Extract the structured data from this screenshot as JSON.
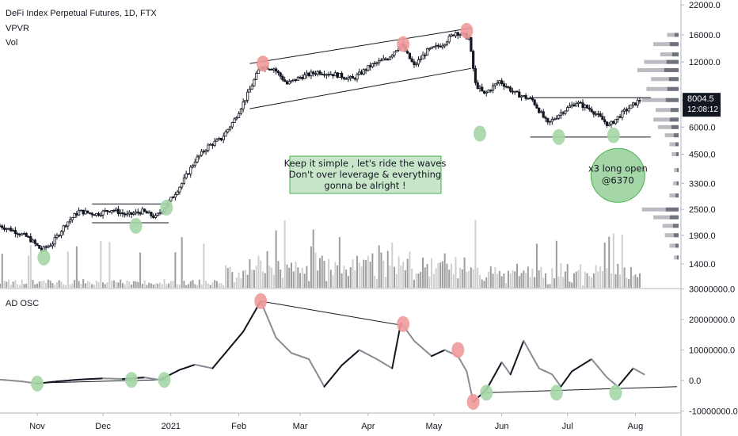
{
  "legend": {
    "title": "DeFi Index Perpetual Futures, 1D, FTX",
    "vpvr": "VPVR",
    "vol": "Vol",
    "osc": "AD OSC"
  },
  "price_badge": {
    "price": "8004.5",
    "countdown": "12:08:12",
    "color": "#131722"
  },
  "annotations": {
    "box_line1": "Keep it simple , let's ride the waves",
    "box_line2": "Don't over leverage & everything",
    "box_line3": "gonna be alright !",
    "circle_line1": "x3 long open",
    "circle_line2": "@6370"
  },
  "colors": {
    "green": "#a5d6a7",
    "red": "#ef9a9a",
    "box_fill": "#c8e6c9",
    "box_border": "#4caf50"
  },
  "chart_data": {
    "type": "candlestick",
    "title": "DeFi Index Perpetual Futures, 1D, FTX",
    "price_axis": {
      "scale": "log",
      "ticks": [
        1400,
        1900,
        2500,
        3300,
        4500,
        6000,
        8000,
        12000,
        16000,
        22000
      ],
      "tick_labels": [
        "1400.0",
        "1900.0",
        "2500.0",
        "3300.0",
        "4500.0",
        "6000.0",
        "8000.0",
        "12000.0",
        "16000.0",
        "22000.0"
      ]
    },
    "osc_axis": {
      "ticks": [
        -10000000,
        0,
        10000000,
        20000000,
        30000000
      ],
      "tick_labels": [
        "-10000000.0",
        "0.0",
        "10000000.0",
        "20000000.0",
        "30000000.0"
      ]
    },
    "x_axis": {
      "start": "2020-10-15",
      "end": "2021-08-20",
      "ticks": [
        "2020-11-01",
        "2020-12-01",
        "2021-01-01",
        "2021-02-01",
        "2021-03-01",
        "2021-04-01",
        "2021-05-01",
        "2021-06-01",
        "2021-07-01",
        "2021-08-01"
      ],
      "tick_labels": [
        "Nov",
        "Dec",
        "2021",
        "Feb",
        "Mar",
        "Apr",
        "May",
        "Jun",
        "Jul",
        "Aug"
      ]
    },
    "price_path": [
      [
        "2020-10-15",
        2100
      ],
      [
        "2020-10-22",
        1980
      ],
      [
        "2020-10-28",
        1850
      ],
      [
        "2020-11-03",
        1620
      ],
      [
        "2020-11-08",
        1750
      ],
      [
        "2020-11-14",
        2150
      ],
      [
        "2020-11-20",
        2450
      ],
      [
        "2020-11-28",
        2380
      ],
      [
        "2020-12-05",
        2500
      ],
      [
        "2020-12-12",
        2350
      ],
      [
        "2020-12-19",
        2450
      ],
      [
        "2020-12-25",
        2300
      ],
      [
        "2020-12-31",
        2700
      ],
      [
        "2021-01-06",
        3300
      ],
      [
        "2021-01-12",
        4200
      ],
      [
        "2021-01-18",
        4900
      ],
      [
        "2021-01-24",
        5300
      ],
      [
        "2021-01-30",
        6500
      ],
      [
        "2021-02-05",
        8500
      ],
      [
        "2021-02-11",
        11500
      ],
      [
        "2021-02-17",
        11200
      ],
      [
        "2021-02-23",
        9500
      ],
      [
        "2021-03-01",
        10200
      ],
      [
        "2021-03-09",
        10800
      ],
      [
        "2021-03-17",
        10500
      ],
      [
        "2021-03-25",
        10000
      ],
      [
        "2021-04-02",
        11500
      ],
      [
        "2021-04-10",
        12500
      ],
      [
        "2021-04-16",
        14500
      ],
      [
        "2021-04-22",
        11500
      ],
      [
        "2021-04-28",
        13500
      ],
      [
        "2021-05-05",
        14500
      ],
      [
        "2021-05-11",
        16500
      ],
      [
        "2021-05-17",
        15500
      ],
      [
        "2021-05-20",
        9500
      ],
      [
        "2021-05-24",
        8500
      ],
      [
        "2021-05-31",
        9800
      ],
      [
        "2021-06-07",
        8600
      ],
      [
        "2021-06-15",
        8000
      ],
      [
        "2021-06-22",
        6200
      ],
      [
        "2021-06-28",
        7000
      ],
      [
        "2021-07-05",
        7800
      ],
      [
        "2021-07-12",
        7200
      ],
      [
        "2021-07-20",
        6100
      ],
      [
        "2021-07-27",
        7100
      ],
      [
        "2021-08-03",
        8000
      ]
    ],
    "ad_osc": [
      [
        "2020-10-15",
        300000
      ],
      [
        "2020-10-25",
        -300000
      ],
      [
        "2020-11-01",
        -1000000
      ],
      [
        "2020-11-10",
        -300000
      ],
      [
        "2020-11-20",
        300000
      ],
      [
        "2020-12-01",
        700000
      ],
      [
        "2020-12-10",
        500000
      ],
      [
        "2020-12-20",
        1000000
      ],
      [
        "2020-12-27",
        200000
      ],
      [
        "2021-01-05",
        3500000
      ],
      [
        "2021-01-12",
        5200000
      ],
      [
        "2021-01-20",
        4000000
      ],
      [
        "2021-01-27",
        10000000
      ],
      [
        "2021-02-03",
        16000000
      ],
      [
        "2021-02-11",
        26000000
      ],
      [
        "2021-02-18",
        14000000
      ],
      [
        "2021-02-25",
        9000000
      ],
      [
        "2021-03-05",
        7000000
      ],
      [
        "2021-03-12",
        -2000000
      ],
      [
        "2021-03-20",
        5000000
      ],
      [
        "2021-03-28",
        10000000
      ],
      [
        "2021-04-05",
        7000000
      ],
      [
        "2021-04-12",
        4000000
      ],
      [
        "2021-04-16",
        19000000
      ],
      [
        "2021-04-22",
        13000000
      ],
      [
        "2021-04-30",
        8000000
      ],
      [
        "2021-05-06",
        10000000
      ],
      [
        "2021-05-12",
        8000000
      ],
      [
        "2021-05-16",
        3000000
      ],
      [
        "2021-05-19",
        -7000000
      ],
      [
        "2021-05-25",
        -3000000
      ],
      [
        "2021-06-01",
        6000000
      ],
      [
        "2021-06-05",
        2000000
      ],
      [
        "2021-06-11",
        13000000
      ],
      [
        "2021-06-18",
        4000000
      ],
      [
        "2021-06-24",
        2000000
      ],
      [
        "2021-06-28",
        -2000000
      ],
      [
        "2021-07-03",
        3000000
      ],
      [
        "2021-07-12",
        7000000
      ],
      [
        "2021-07-19",
        1000000
      ],
      [
        "2021-07-24",
        -2000000
      ],
      [
        "2021-07-31",
        4000000
      ],
      [
        "2021-08-05",
        2000000
      ]
    ],
    "markers": [
      {
        "panel": "price",
        "x": "2020-11-04",
        "y": 1500,
        "color": "green"
      },
      {
        "panel": "price",
        "x": "2020-12-16",
        "y": 2100,
        "color": "green"
      },
      {
        "panel": "price",
        "x": "2020-12-30",
        "y": 2550,
        "color": "green"
      },
      {
        "panel": "price",
        "x": "2021-02-12",
        "y": 11800,
        "color": "red"
      },
      {
        "panel": "price",
        "x": "2021-04-17",
        "y": 14500,
        "color": "red"
      },
      {
        "panel": "price",
        "x": "2021-05-16",
        "y": 16700,
        "color": "red"
      },
      {
        "panel": "price",
        "x": "2021-05-22",
        "y": 5600,
        "color": "green"
      },
      {
        "panel": "price",
        "x": "2021-06-27",
        "y": 5400,
        "color": "green"
      },
      {
        "panel": "price",
        "x": "2021-07-22",
        "y": 5500,
        "color": "green"
      },
      {
        "panel": "osc",
        "x": "2020-11-01",
        "y": -1000000,
        "color": "green"
      },
      {
        "panel": "osc",
        "x": "2020-12-14",
        "y": 200000,
        "color": "green"
      },
      {
        "panel": "osc",
        "x": "2020-12-29",
        "y": 200000,
        "color": "green"
      },
      {
        "panel": "osc",
        "x": "2021-02-11",
        "y": 26000000,
        "color": "red"
      },
      {
        "panel": "osc",
        "x": "2021-04-17",
        "y": 18500000,
        "color": "red"
      },
      {
        "panel": "osc",
        "x": "2021-05-12",
        "y": 10000000,
        "color": "red"
      },
      {
        "panel": "osc",
        "x": "2021-05-19",
        "y": -7000000,
        "color": "red"
      },
      {
        "panel": "osc",
        "x": "2021-05-25",
        "y": -4000000,
        "color": "green"
      },
      {
        "panel": "osc",
        "x": "2021-06-26",
        "y": -4000000,
        "color": "green"
      },
      {
        "panel": "osc",
        "x": "2021-07-23",
        "y": -4000000,
        "color": "green"
      }
    ],
    "trendlines": [
      {
        "panel": "price",
        "from": [
          "2020-11-26",
          2650
        ],
        "to": [
          "2020-12-31",
          2650
        ]
      },
      {
        "panel": "price",
        "from": [
          "2020-11-26",
          2170
        ],
        "to": [
          "2020-12-31",
          2170
        ]
      },
      {
        "panel": "price",
        "from": [
          "2021-02-06",
          11800
        ],
        "to": [
          "2021-05-18",
          17200
        ]
      },
      {
        "panel": "price",
        "from": [
          "2021-02-06",
          7300
        ],
        "to": [
          "2021-05-18",
          11200
        ]
      },
      {
        "panel": "price",
        "from": [
          "2021-06-14",
          8200
        ],
        "to": [
          "2021-08-08",
          8200
        ]
      },
      {
        "panel": "price",
        "from": [
          "2021-06-14",
          5400
        ],
        "to": [
          "2021-08-08",
          5400
        ]
      },
      {
        "panel": "osc",
        "from": [
          "2020-11-01",
          -800000
        ],
        "to": [
          "2020-12-30",
          300000
        ]
      },
      {
        "panel": "osc",
        "from": [
          "2021-02-11",
          26000000
        ],
        "to": [
          "2021-04-17",
          18000000
        ]
      },
      {
        "panel": "osc",
        "from": [
          "2021-05-25",
          -4000000
        ],
        "to": [
          "2021-08-20",
          -2000000
        ]
      }
    ],
    "callout_circle": {
      "x": "2021-07-24",
      "y": 3300
    },
    "vpvr_profile": [
      [
        16000,
        0.25
      ],
      [
        14500,
        0.55
      ],
      [
        13000,
        0.4
      ],
      [
        12000,
        0.75
      ],
      [
        11000,
        0.9
      ],
      [
        10000,
        0.6
      ],
      [
        9000,
        0.7
      ],
      [
        8000,
        0.8
      ],
      [
        7200,
        0.5
      ],
      [
        6500,
        0.55
      ],
      [
        6000,
        0.45
      ],
      [
        5500,
        0.3
      ],
      [
        5000,
        0.2
      ],
      [
        4500,
        0.15
      ],
      [
        3800,
        0.1
      ],
      [
        3300,
        0.12
      ],
      [
        2900,
        0.2
      ],
      [
        2500,
        0.8
      ],
      [
        2300,
        0.55
      ],
      [
        2100,
        0.35
      ],
      [
        1900,
        0.3
      ],
      [
        1700,
        0.2
      ],
      [
        1500,
        0.1
      ]
    ]
  }
}
